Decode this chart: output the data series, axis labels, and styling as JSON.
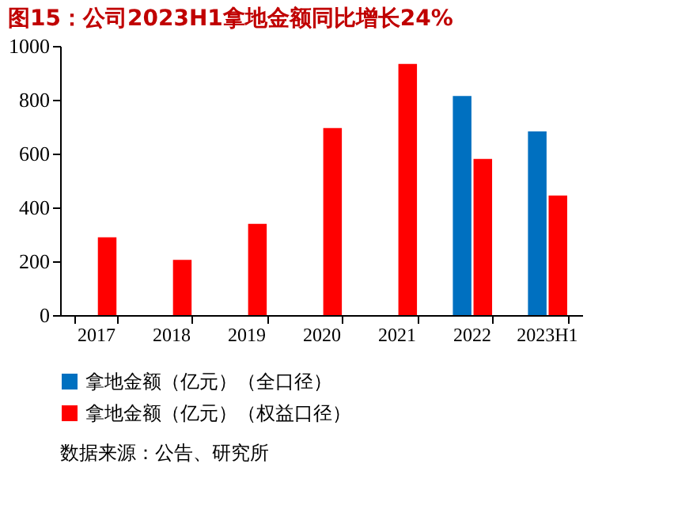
{
  "chart_data": {
    "type": "bar",
    "title": "图15：公司2023H1拿地金额同比增长24%",
    "categories": [
      "2017",
      "2018",
      "2019",
      "2020",
      "2021",
      "2022",
      "2023H1"
    ],
    "series": [
      {
        "name": "拿地金额（亿元）（全口径）",
        "color": "#0070c0",
        "values": [
          null,
          null,
          null,
          null,
          null,
          814,
          682
        ]
      },
      {
        "name": "拿地金额（亿元）（权益口径）",
        "color": "#ff0000",
        "values": [
          289,
          205,
          339,
          695,
          933,
          580,
          444
        ]
      }
    ],
    "ylim": [
      0,
      1000
    ],
    "yticks": [
      0,
      200,
      400,
      600,
      800,
      1000
    ],
    "grid": false,
    "legend": "bottom",
    "annotations": [
      "数据来源：公告、研究所"
    ]
  }
}
